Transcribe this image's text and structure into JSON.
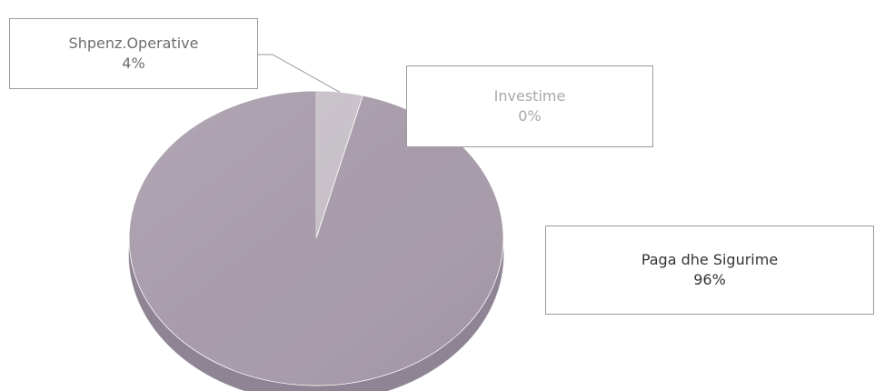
{
  "chart_data": {
    "type": "pie",
    "title": "",
    "slices": [
      {
        "category": "Paga dhe Sigurime",
        "percent_label": "96%",
        "value": 96,
        "color": "#a89cab"
      },
      {
        "category": "Shpenz.Operative",
        "percent_label": "4%",
        "value": 4,
        "color": "#c7c0c8"
      },
      {
        "category": "Investime",
        "percent_label": "0%",
        "value": 0,
        "color": "#d6d0d6"
      }
    ],
    "style": "3d",
    "legend": "none",
    "data_labels": "callout-boxes"
  }
}
